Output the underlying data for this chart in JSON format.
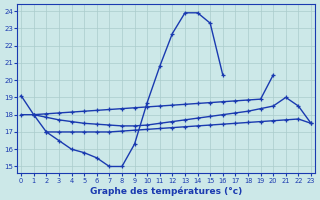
{
  "title": "Graphe des températures (°c)",
  "bg_color": "#cce8e8",
  "line_color": "#1a3ab0",
  "grid_color": "#aacccc",
  "xlim_min": -0.3,
  "xlim_max": 23.3,
  "ylim_min": 14.6,
  "ylim_max": 24.4,
  "yticks": [
    15,
    16,
    17,
    18,
    19,
    20,
    21,
    22,
    23,
    24
  ],
  "xticks": [
    0,
    1,
    2,
    3,
    4,
    5,
    6,
    7,
    8,
    9,
    10,
    11,
    12,
    13,
    14,
    15,
    16,
    17,
    18,
    19,
    20,
    21,
    22,
    23
  ],
  "curve_main_x": [
    0,
    1,
    2,
    3,
    4,
    5,
    6,
    7,
    8,
    9,
    10,
    11,
    12,
    13,
    14,
    15,
    16
  ],
  "curve_main_y": [
    19.1,
    18.0,
    17.0,
    16.5,
    16.0,
    15.8,
    15.5,
    15.0,
    15.0,
    16.3,
    18.7,
    20.8,
    22.7,
    23.9,
    23.9,
    23.3,
    20.3
  ],
  "curve_upper_x": [
    0,
    1,
    2,
    3,
    4,
    5,
    6,
    7,
    8,
    9,
    10,
    11,
    12,
    13,
    14,
    15,
    16,
    17,
    18,
    19,
    20
  ],
  "curve_upper_y": [
    18.0,
    18.0,
    18.05,
    18.1,
    18.15,
    18.2,
    18.25,
    18.3,
    18.35,
    18.4,
    18.45,
    18.5,
    18.55,
    18.6,
    18.65,
    18.7,
    18.75,
    18.8,
    18.85,
    18.9,
    20.3
  ],
  "curve_mid_x": [
    1,
    2,
    3,
    4,
    5,
    6,
    7,
    8,
    9,
    10,
    11,
    12,
    13,
    14,
    15,
    16,
    17,
    18,
    19,
    20,
    21,
    22,
    23
  ],
  "curve_mid_y": [
    18.0,
    17.85,
    17.7,
    17.6,
    17.5,
    17.45,
    17.4,
    17.35,
    17.35,
    17.4,
    17.5,
    17.6,
    17.7,
    17.8,
    17.9,
    18.0,
    18.1,
    18.2,
    18.35,
    18.5,
    19.0,
    18.5,
    17.5
  ],
  "curve_low_x": [
    2,
    3,
    4,
    5,
    6,
    7,
    8,
    9,
    10,
    11,
    12,
    13,
    14,
    15,
    16,
    17,
    18,
    19,
    20,
    21,
    22,
    23
  ],
  "curve_low_y": [
    17.0,
    17.0,
    17.0,
    17.0,
    17.0,
    17.0,
    17.05,
    17.1,
    17.15,
    17.2,
    17.25,
    17.3,
    17.35,
    17.4,
    17.45,
    17.5,
    17.55,
    17.6,
    17.65,
    17.7,
    17.75,
    17.5
  ]
}
